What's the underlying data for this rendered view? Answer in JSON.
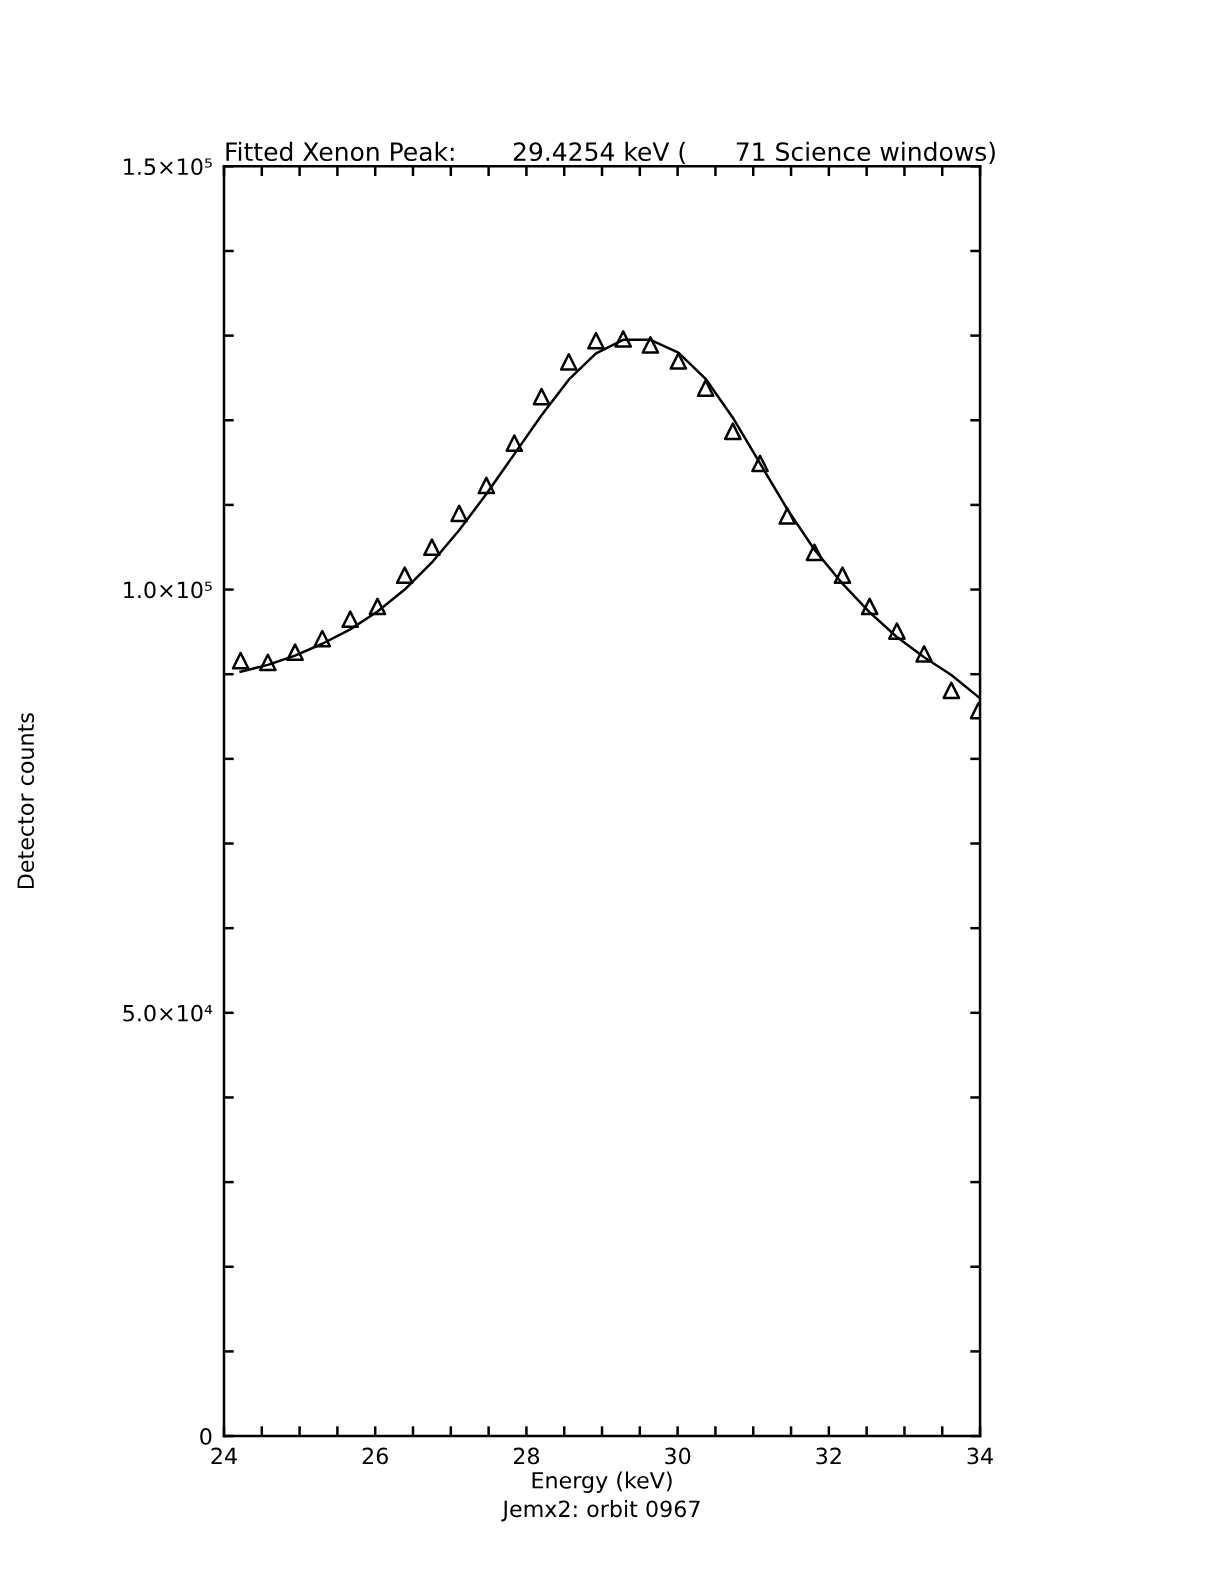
{
  "chart_data": {
    "type": "scatter",
    "title": "Fitted Xenon Peak:       29.4254 keV (      71 Science windows)",
    "xlabel": "Energy (keV)",
    "ylabel": "Detector counts",
    "annotations": [
      "Jemx2: orbit 0967"
    ],
    "x": [
      24.22,
      24.58,
      24.94,
      25.3,
      25.67,
      26.03,
      26.39,
      26.75,
      27.11,
      27.47,
      27.84,
      28.2,
      28.56,
      28.92,
      29.28,
      29.64,
      30.01,
      30.37,
      30.73,
      31.09,
      31.45,
      31.81,
      32.18,
      32.54,
      32.9,
      33.26,
      33.62,
      33.98
    ],
    "series": [
      {
        "marker": "triangle",
        "color": "#000000",
        "values": [
          91600,
          91400,
          92600,
          94200,
          96500,
          98000,
          101700,
          105000,
          109000,
          112300,
          117300,
          122800,
          126900,
          129400,
          129600,
          128900,
          127000,
          123800,
          118700,
          114900,
          108700,
          104400,
          101700,
          98000,
          95100,
          92400,
          88100,
          85700
        ]
      },
      {
        "type": "line",
        "marker": "none",
        "line_style": "solid",
        "color": "#000000",
        "values": [
          90300,
          91100,
          92200,
          93600,
          95300,
          97400,
          100000,
          103200,
          107000,
          111300,
          116000,
          120600,
          124800,
          127900,
          129500,
          129500,
          128000,
          124900,
          120300,
          114900,
          109500,
          104700,
          100700,
          97300,
          94400,
          92000,
          89900,
          87300
        ]
      }
    ],
    "xlim": [
      24,
      34
    ],
    "ylim": [
      0,
      150000
    ],
    "xticks": [
      24,
      {
        "value": 24.5,
        "label": null
      },
      {
        "value": 25,
        "label": null
      },
      {
        "value": 25.5,
        "label": null
      },
      26,
      {
        "value": 26.5,
        "label": null
      },
      {
        "value": 27,
        "label": null
      },
      {
        "value": 27.5,
        "label": null
      },
      28,
      {
        "value": 28.5,
        "label": null
      },
      {
        "value": 29,
        "label": null
      },
      {
        "value": 29.5,
        "label": null
      },
      30,
      {
        "value": 30.5,
        "label": null
      },
      {
        "value": 31,
        "label": null
      },
      {
        "value": 31.5,
        "label": null
      },
      32,
      {
        "value": 32.5,
        "label": null
      },
      {
        "value": 33,
        "label": null
      },
      {
        "value": 33.5,
        "label": null
      },
      34
    ],
    "yticks": [
      0,
      {
        "value": 10000,
        "label": null
      },
      {
        "value": 20000,
        "label": null
      },
      {
        "value": 30000,
        "label": null
      },
      {
        "value": 40000,
        "label": null
      },
      {
        "value": 50000,
        "label": "5.0×10⁴"
      },
      {
        "value": 60000,
        "label": null
      },
      {
        "value": 70000,
        "label": null
      },
      {
        "value": 80000,
        "label": null
      },
      {
        "value": 90000,
        "label": null
      },
      {
        "value": 100000,
        "label": "1.0×10⁵"
      },
      {
        "value": 110000,
        "label": null
      },
      {
        "value": 120000,
        "label": null
      },
      {
        "value": 130000,
        "label": null
      },
      {
        "value": 140000,
        "label": null
      },
      {
        "value": 150000,
        "label": "1.5×10⁵"
      }
    ],
    "grid": false,
    "legend": false
  }
}
